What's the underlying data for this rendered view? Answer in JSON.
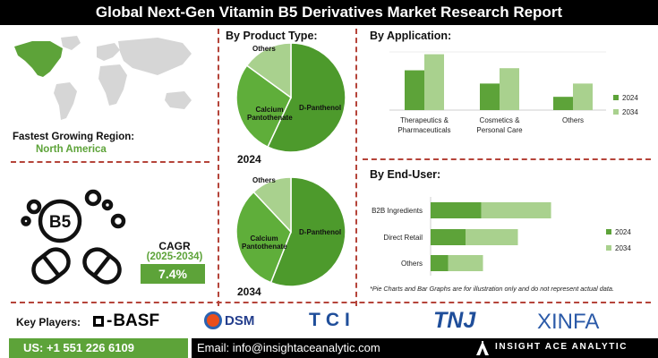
{
  "header": {
    "title": "Global Next-Gen Vitamin B5 Derivatives Market Research Report"
  },
  "region": {
    "label": "Fastest Growing Region:",
    "value": "North America"
  },
  "cagr": {
    "title": "CAGR",
    "period": "(2025-2034)",
    "value": "7.4%"
  },
  "product_type": {
    "title": "By Product Type:"
  },
  "application": {
    "title": "By Application:"
  },
  "end_user": {
    "title": "By End-User:"
  },
  "footnote": "*Pie Charts and Bar Graphs are for illustration only and do not represent actual data.",
  "key_players": {
    "label": "Key Players:",
    "logos": [
      "BASF",
      "DSM",
      "TCI",
      "TNJ",
      "XINFA"
    ]
  },
  "contact": {
    "phone": "US: +1 551 226 6109",
    "email": "Email: info@insightaceanalytic.com",
    "brand": "INSIGHT ACE ANALYTIC"
  },
  "colors": {
    "series_2024": "#5da339",
    "series_2034": "#a9d18e",
    "accent": "#5da339",
    "divider": "#b5443a"
  },
  "chart_data": [
    {
      "type": "pie",
      "title": "By Product Type:",
      "year": "2024",
      "categories": [
        "D-Panthenol",
        "Calcium Pantothenate",
        "Others"
      ],
      "values": [
        57,
        28,
        15
      ]
    },
    {
      "type": "pie",
      "title": "By Product Type:",
      "year": "2034",
      "categories": [
        "D-Panthenol",
        "Calcium Pantothenate",
        "Others"
      ],
      "values": [
        56,
        32,
        12
      ]
    },
    {
      "type": "bar",
      "title": "By Application:",
      "categories": [
        "Therapeutics & Pharmaceuticals",
        "Cosmetics & Personal Care",
        "Others"
      ],
      "series": [
        {
          "name": "2024",
          "values": [
            5.7,
            3.8,
            1.9
          ]
        },
        {
          "name": "2034",
          "values": [
            8.0,
            6.0,
            3.8
          ]
        }
      ],
      "legend": "right"
    },
    {
      "type": "bar",
      "orientation": "horizontal",
      "stacked": true,
      "title": "By End-User:",
      "categories": [
        "B2B Ingredients",
        "Direct Retail",
        "Others"
      ],
      "series": [
        {
          "name": "2024",
          "values": [
            2.9,
            2.0,
            1.0
          ]
        },
        {
          "name": "2034",
          "values": [
            4.0,
            3.0,
            2.0
          ]
        }
      ],
      "legend": "right"
    }
  ]
}
